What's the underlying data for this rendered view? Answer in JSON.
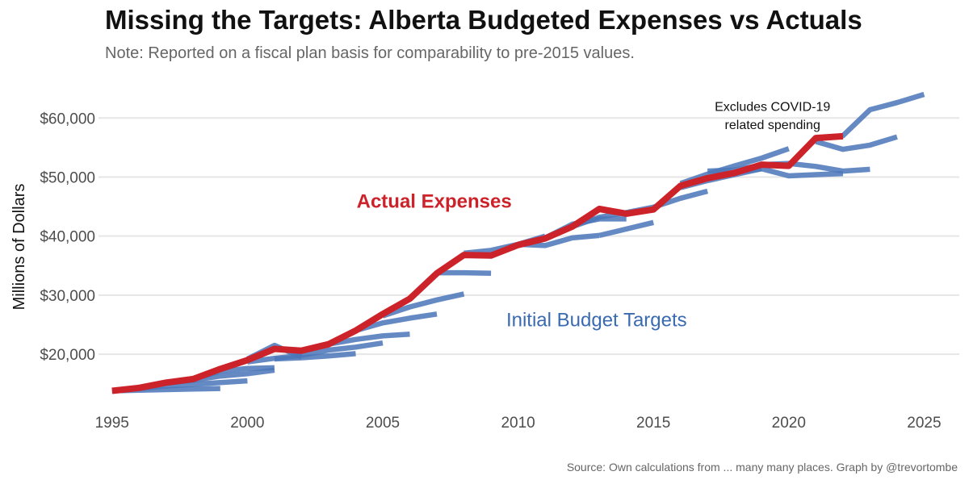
{
  "header": {
    "title": "Missing the Targets: Alberta Budgeted Expenses vs Actuals",
    "subtitle": "Note: Reported on a fiscal plan basis for comparability to pre-2015 values."
  },
  "footer": {
    "caption": "Source: Own calculations from ... many many places. Graph by @trevortombe"
  },
  "chart_data": {
    "type": "line",
    "ylabel": "Millions of Dollars",
    "xlim": [
      1994.5,
      2026.3
    ],
    "ylim": [
      11000,
      67000
    ],
    "x_ticks": [
      1995,
      2000,
      2005,
      2010,
      2015,
      2020,
      2025
    ],
    "x_tick_labels": [
      "1995",
      "2000",
      "2005",
      "2010",
      "2015",
      "2020",
      "2025"
    ],
    "y_ticks": [
      20000,
      30000,
      40000,
      50000,
      60000
    ],
    "y_tick_labels": [
      "$20,000",
      "$30,000",
      "$40,000",
      "$50,000",
      "$60,000"
    ],
    "grid": true,
    "colors": {
      "actual": "#cc2229",
      "budget": "#4a75b8",
      "grid": "#e6e6e6"
    },
    "actual": {
      "x": [
        1995,
        1996,
        1997,
        1998,
        1999,
        2000,
        2001,
        2002,
        2003,
        2004,
        2005,
        2006,
        2007,
        2008,
        2009,
        2010,
        2011,
        2012,
        2013,
        2014,
        2015,
        2016,
        2017,
        2018,
        2019,
        2020,
        2021,
        2022
      ],
      "y": [
        13800,
        14300,
        15200,
        15800,
        17500,
        19000,
        20900,
        20600,
        21700,
        24000,
        26800,
        29400,
        33700,
        36800,
        36700,
        38500,
        39600,
        41600,
        44600,
        43800,
        44500,
        48500,
        49800,
        50700,
        52100,
        51900,
        56600,
        56900
      ]
    },
    "budgets": [
      {
        "x": [
          1995,
          1996,
          1997,
          1998,
          1999
        ],
        "y": [
          13800,
          13900,
          14000,
          14100,
          14200
        ]
      },
      {
        "x": [
          1996,
          1997,
          1998,
          1999,
          2000
        ],
        "y": [
          14200,
          14600,
          14900,
          15200,
          15500
        ]
      },
      {
        "x": [
          1997,
          1998,
          1999,
          2000,
          2001
        ],
        "y": [
          15100,
          15600,
          16300,
          16700,
          17300
        ]
      },
      {
        "x": [
          1998,
          1999,
          2000,
          2001
        ],
        "y": [
          15800,
          17100,
          17600,
          17700
        ]
      },
      {
        "x": [
          2000,
          2001,
          2002
        ],
        "y": [
          18700,
          19300,
          19800
        ]
      },
      {
        "x": [
          2000,
          2001,
          2002
        ],
        "y": [
          19200,
          21500,
          19500
        ]
      },
      {
        "x": [
          2001,
          2002,
          2003,
          2004
        ],
        "y": [
          19200,
          19400,
          19700,
          20100
        ]
      },
      {
        "x": [
          2002,
          2003,
          2004,
          2005
        ],
        "y": [
          19800,
          20700,
          21200,
          21900
        ]
      },
      {
        "x": [
          2003,
          2004,
          2005,
          2006
        ],
        "y": [
          21700,
          22500,
          23100,
          23400
        ]
      },
      {
        "x": [
          2004,
          2005,
          2006,
          2007
        ],
        "y": [
          24000,
          25300,
          26100,
          26800
        ]
      },
      {
        "x": [
          2005,
          2006,
          2007,
          2008
        ],
        "y": [
          26500,
          28000,
          29200,
          30200
        ]
      },
      {
        "x": [
          2007,
          2008,
          2009
        ],
        "y": [
          33800,
          33800,
          33700
        ]
      },
      {
        "x": [
          2008,
          2009,
          2010,
          2011
        ],
        "y": [
          37100,
          37600,
          38600,
          40000
        ]
      },
      {
        "x": [
          2010,
          2011,
          2012,
          2013
        ],
        "y": [
          38600,
          38400,
          39700,
          40100
        ]
      },
      {
        "x": [
          2011,
          2012,
          2013,
          2014
        ],
        "y": [
          39700,
          42000,
          42900,
          42900
        ]
      },
      {
        "x": [
          2012,
          2013,
          2014,
          2015
        ],
        "y": [
          41600,
          43200,
          44000,
          44900
        ]
      },
      {
        "x": [
          2013,
          2014,
          2015
        ],
        "y": [
          40100,
          41200,
          42300
        ]
      },
      {
        "x": [
          2015,
          2016,
          2017
        ],
        "y": [
          44900,
          46400,
          47600
        ]
      },
      {
        "x": [
          2016,
          2017,
          2018,
          2019
        ],
        "y": [
          48200,
          49400,
          50400,
          51400
        ]
      },
      {
        "x": [
          2017,
          2018,
          2019,
          2020
        ],
        "y": [
          51000,
          51200,
          52000,
          52000
        ]
      },
      {
        "x": [
          2018,
          2019,
          2020,
          2021,
          2022
        ],
        "y": [
          50800,
          51400,
          50200,
          50400,
          50600
        ]
      },
      {
        "x": [
          2019,
          2020,
          2021,
          2022,
          2023
        ],
        "y": [
          52100,
          52300,
          51800,
          51000,
          51300
        ]
      },
      {
        "x": [
          2016,
          2017,
          2018,
          2019,
          2020
        ],
        "y": [
          48900,
          50500,
          51900,
          53200,
          54800
        ]
      },
      {
        "x": [
          2021,
          2022,
          2023,
          2024
        ],
        "y": [
          56000,
          54700,
          55400,
          56800
        ]
      },
      {
        "x": [
          2021,
          2022,
          2023,
          2024,
          2025
        ],
        "y": [
          56600,
          57000,
          61400,
          62600,
          64000
        ]
      }
    ],
    "annotations": [
      {
        "text": "Actual Expenses",
        "x": 2006.9,
        "y": 44800,
        "style": "actual"
      },
      {
        "text": "Initial Budget Targets",
        "x": 2012.9,
        "y": 24700,
        "style": "budget"
      },
      {
        "text": "Excludes COVID-19",
        "x": 2019.4,
        "y": 61200,
        "style": "covid"
      },
      {
        "text": "related spending",
        "x": 2019.4,
        "y": 58100,
        "style": "covid"
      }
    ]
  }
}
